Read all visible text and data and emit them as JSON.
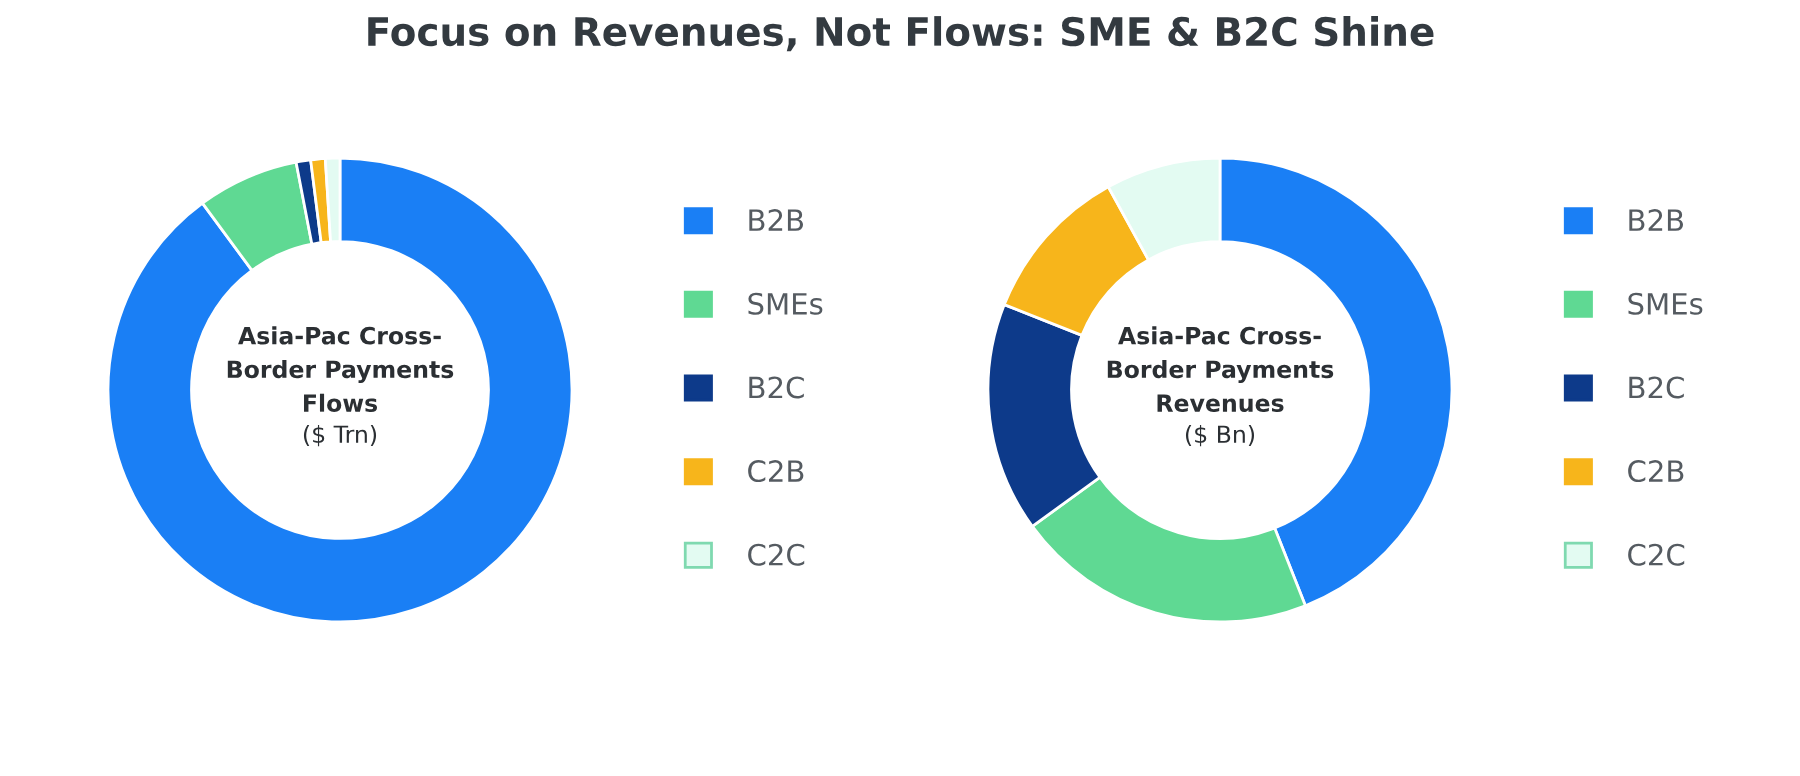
{
  "chart_data": [
    {
      "type": "donut",
      "title": "Asia-Pac Cross-\nBorder Payments\nFlows",
      "subtitle": "($ Trn)",
      "annotations": [
        "Focus on Revenues, Not Flows: SME & B2C Shine"
      ],
      "categories": [
        "B2B",
        "SMEs",
        "B2C",
        "C2B",
        "C2C"
      ],
      "values": [
        89,
        7,
        1,
        1,
        1
      ],
      "colors": [
        "#1a7ff5",
        "#5fd993",
        "#0d3a8a",
        "#f7b51b",
        "#e3fbf2"
      ],
      "legend": "right"
    },
    {
      "type": "donut",
      "title": "Asia-Pac Cross-\nBorder Payments\nRevenues",
      "subtitle": "($ Bn)",
      "categories": [
        "B2B",
        "SMEs",
        "B2C",
        "C2B",
        "C2C"
      ],
      "values": [
        44,
        21,
        16,
        11,
        8
      ],
      "colors": [
        "#1a7ff5",
        "#5fd993",
        "#0d3a8a",
        "#f7b51b",
        "#e3fbf2"
      ],
      "legend": "right"
    }
  ]
}
